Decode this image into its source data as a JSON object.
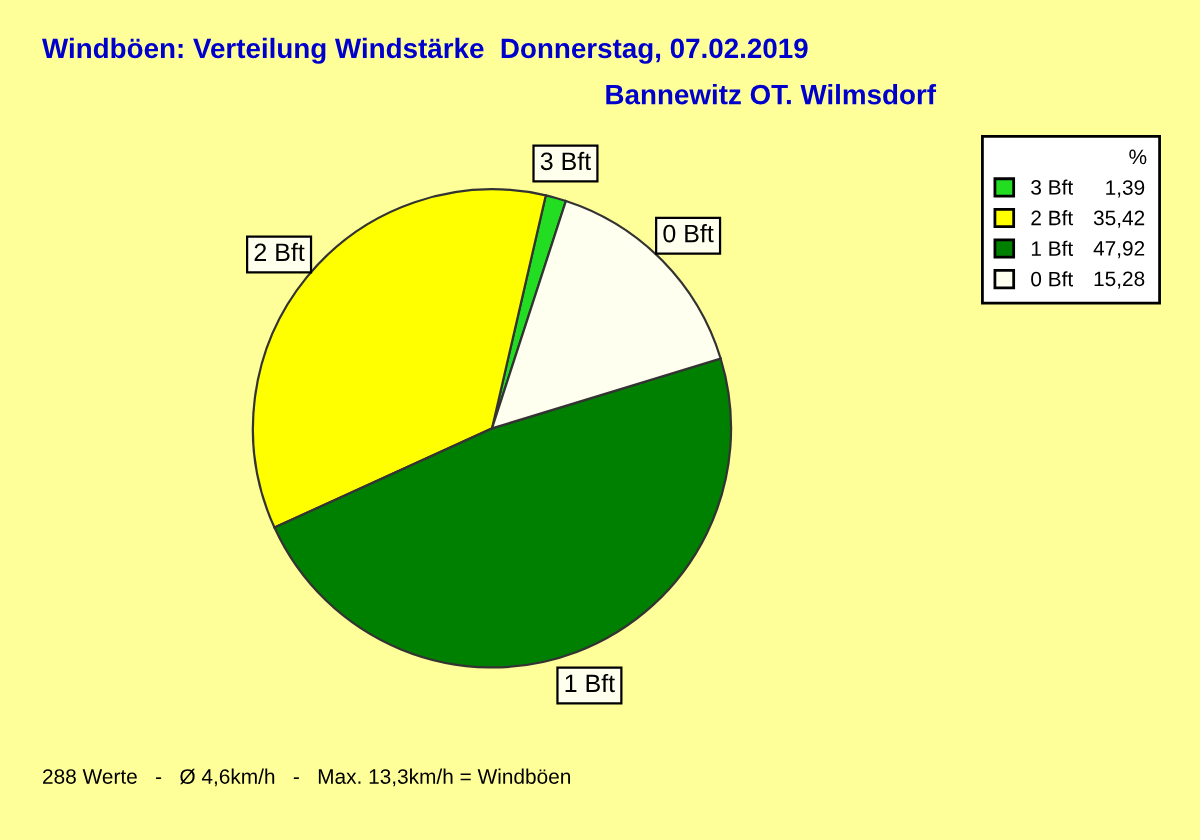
{
  "chart_data": {
    "type": "pie",
    "title": "Windböen: Verteilung Windstärke  Donnerstag, 07.02.2019",
    "subtitle": "Bannewitz OT. Wilmsdorf",
    "legend_title": "%",
    "categories": [
      "3 Bft",
      "2 Bft",
      "1 Bft",
      "0 Bft"
    ],
    "values": [
      1.39,
      35.42,
      47.92,
      15.28
    ],
    "value_labels": [
      "1,39",
      "35,42",
      "47,92",
      "15,28"
    ],
    "colors": [
      "#22dd22",
      "#ffff00",
      "#008000",
      "#fffff0"
    ],
    "legend": "top right",
    "annotations": [
      "288 Werte   -   Ø 4,6km/h   -   Max. 13,3km/h = Windböen"
    ]
  }
}
